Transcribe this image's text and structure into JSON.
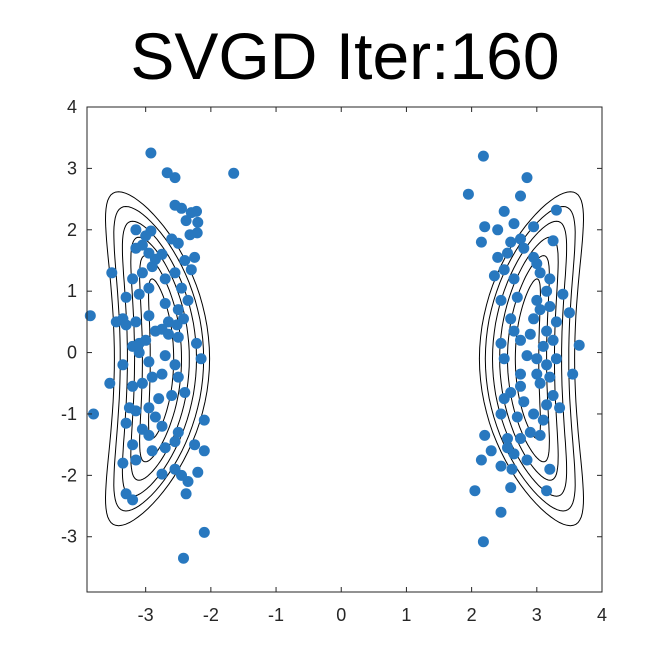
{
  "chart_data": {
    "type": "scatter",
    "title": "SVGD Iter:160",
    "xlabel": "",
    "ylabel": "",
    "xlim": [
      -3.9,
      4.0
    ],
    "ylim": [
      -3.9,
      4.0
    ],
    "x_ticks": [
      -3,
      -2,
      -1,
      0,
      1,
      2,
      3,
      4
    ],
    "y_ticks": [
      -3,
      -2,
      -1,
      0,
      1,
      2,
      3,
      4
    ],
    "grid": false,
    "marker_color": "#2878bf",
    "contour_color": "#000000",
    "contours": {
      "modes": [
        {
          "center_x": -2.75,
          "center_y": -0.1,
          "bend": -0.09
        },
        {
          "center_x": 2.85,
          "center_y": -0.1,
          "bend": 0.09
        }
      ],
      "levels": [
        {
          "half_width": 0.18,
          "half_height": 1.3
        },
        {
          "half_width": 0.3,
          "half_height": 1.68
        },
        {
          "half_width": 0.42,
          "half_height": 1.98
        },
        {
          "half_width": 0.53,
          "half_height": 2.24
        },
        {
          "half_width": 0.64,
          "half_height": 2.48
        },
        {
          "half_width": 0.73,
          "half_height": 2.72
        }
      ]
    },
    "series": [
      {
        "points": [
          [
            -2.92,
            3.25
          ],
          [
            -2.67,
            2.93
          ],
          [
            -2.55,
            2.85
          ],
          [
            -1.65,
            2.92
          ],
          [
            -2.55,
            2.4
          ],
          [
            -2.45,
            2.35
          ],
          [
            -2.3,
            2.28
          ],
          [
            -2.22,
            2.3
          ],
          [
            -2.2,
            2.12
          ],
          [
            -2.21,
            1.95
          ],
          [
            -3.15,
            2.0
          ],
          [
            -3.0,
            1.9
          ],
          [
            -2.92,
            1.98
          ],
          [
            -2.38,
            2.15
          ],
          [
            -2.32,
            1.92
          ],
          [
            -3.52,
            1.3
          ],
          [
            -3.15,
            1.7
          ],
          [
            -3.05,
            1.75
          ],
          [
            -2.95,
            1.62
          ],
          [
            -2.85,
            1.52
          ],
          [
            -2.75,
            1.6
          ],
          [
            -2.6,
            1.85
          ],
          [
            -2.5,
            1.78
          ],
          [
            -2.4,
            1.5
          ],
          [
            -2.3,
            1.35
          ],
          [
            -2.25,
            1.55
          ],
          [
            -3.2,
            1.2
          ],
          [
            -3.05,
            1.3
          ],
          [
            -2.9,
            1.4
          ],
          [
            -2.7,
            1.2
          ],
          [
            -2.55,
            1.3
          ],
          [
            -2.45,
            1.05
          ],
          [
            -3.3,
            0.9
          ],
          [
            -3.1,
            0.95
          ],
          [
            -2.95,
            1.05
          ],
          [
            -2.7,
            0.8
          ],
          [
            -2.5,
            0.7
          ],
          [
            -2.35,
            0.85
          ],
          [
            -3.85,
            0.6
          ],
          [
            -3.45,
            0.5
          ],
          [
            -3.35,
            0.55
          ],
          [
            -3.3,
            0.45
          ],
          [
            -3.15,
            0.5
          ],
          [
            -2.95,
            0.6
          ],
          [
            -2.65,
            0.5
          ],
          [
            -2.52,
            0.45
          ],
          [
            -2.42,
            0.55
          ],
          [
            -3.2,
            0.1
          ],
          [
            -3.1,
            0.15
          ],
          [
            -3.0,
            0.2
          ],
          [
            -2.85,
            0.35
          ],
          [
            -2.75,
            0.38
          ],
          [
            -2.65,
            0.3
          ],
          [
            -2.5,
            0.25
          ],
          [
            -2.22,
            0.15
          ],
          [
            -3.35,
            -0.2
          ],
          [
            -3.1,
            0.0
          ],
          [
            -2.95,
            -0.15
          ],
          [
            -2.7,
            -0.05
          ],
          [
            -2.55,
            -0.2
          ],
          [
            -2.15,
            -0.1
          ],
          [
            -3.55,
            -0.5
          ],
          [
            -3.2,
            -0.55
          ],
          [
            -3.05,
            -0.5
          ],
          [
            -2.9,
            -0.4
          ],
          [
            -2.75,
            -0.35
          ],
          [
            -2.5,
            -0.4
          ],
          [
            -3.8,
            -1.0
          ],
          [
            -3.25,
            -0.9
          ],
          [
            -3.15,
            -0.95
          ],
          [
            -2.95,
            -0.9
          ],
          [
            -2.8,
            -0.75
          ],
          [
            -2.6,
            -0.7
          ],
          [
            -2.4,
            -0.65
          ],
          [
            -2.1,
            -1.1
          ],
          [
            -3.3,
            -1.15
          ],
          [
            -3.05,
            -1.25
          ],
          [
            -2.85,
            -1.05
          ],
          [
            -2.75,
            -1.2
          ],
          [
            -2.5,
            -1.3
          ],
          [
            -2.25,
            -1.5
          ],
          [
            -3.2,
            -1.5
          ],
          [
            -3.15,
            -1.75
          ],
          [
            -2.95,
            -1.35
          ],
          [
            -2.7,
            -1.55
          ],
          [
            -2.55,
            -1.45
          ],
          [
            -2.1,
            -1.6
          ],
          [
            -3.35,
            -1.8
          ],
          [
            -2.9,
            -1.6
          ],
          [
            -2.55,
            -1.9
          ],
          [
            -2.35,
            -2.1
          ],
          [
            -2.2,
            -1.95
          ],
          [
            -2.75,
            -1.98
          ],
          [
            -2.45,
            -2.0
          ],
          [
            -3.3,
            -2.3
          ],
          [
            -3.2,
            -2.4
          ],
          [
            -2.38,
            -2.3
          ],
          [
            -2.1,
            -2.93
          ],
          [
            -2.42,
            -3.35
          ]
        ]
      },
      {
        "points": [
          [
            2.18,
            3.2
          ],
          [
            2.85,
            2.85
          ],
          [
            1.95,
            2.58
          ],
          [
            2.75,
            2.55
          ],
          [
            3.3,
            2.32
          ],
          [
            2.5,
            2.3
          ],
          [
            2.2,
            2.05
          ],
          [
            2.4,
            2.0
          ],
          [
            2.65,
            2.1
          ],
          [
            2.95,
            2.05
          ],
          [
            2.15,
            1.8
          ],
          [
            2.6,
            1.8
          ],
          [
            2.75,
            1.85
          ],
          [
            3.25,
            1.82
          ],
          [
            2.4,
            1.55
          ],
          [
            2.55,
            1.62
          ],
          [
            2.8,
            1.7
          ],
          [
            2.95,
            1.55
          ],
          [
            3.0,
            1.45
          ],
          [
            2.35,
            1.25
          ],
          [
            2.5,
            1.35
          ],
          [
            2.65,
            1.2
          ],
          [
            3.05,
            1.3
          ],
          [
            3.2,
            1.2
          ],
          [
            2.45,
            0.85
          ],
          [
            2.7,
            0.9
          ],
          [
            3.0,
            0.85
          ],
          [
            3.15,
            1.0
          ],
          [
            3.4,
            0.95
          ],
          [
            3.05,
            0.7
          ],
          [
            3.2,
            0.75
          ],
          [
            2.6,
            0.55
          ],
          [
            2.95,
            0.55
          ],
          [
            3.3,
            0.5
          ],
          [
            2.65,
            0.35
          ],
          [
            2.9,
            0.3
          ],
          [
            3.15,
            0.35
          ],
          [
            3.5,
            0.65
          ],
          [
            2.45,
            0.15
          ],
          [
            2.75,
            0.2
          ],
          [
            3.1,
            0.1
          ],
          [
            3.25,
            0.2
          ],
          [
            3.65,
            0.12
          ],
          [
            2.5,
            -0.1
          ],
          [
            2.85,
            -0.05
          ],
          [
            3.0,
            -0.1
          ],
          [
            3.15,
            -0.2
          ],
          [
            3.3,
            -0.1
          ],
          [
            2.75,
            -0.35
          ],
          [
            3.0,
            -0.35
          ],
          [
            3.2,
            -0.4
          ],
          [
            3.55,
            -0.35
          ],
          [
            2.6,
            -0.65
          ],
          [
            2.75,
            -0.55
          ],
          [
            3.05,
            -0.5
          ],
          [
            3.25,
            -0.7
          ],
          [
            2.5,
            -0.75
          ],
          [
            2.8,
            -0.8
          ],
          [
            3.15,
            -0.85
          ],
          [
            3.35,
            -0.9
          ],
          [
            2.45,
            -1.0
          ],
          [
            2.7,
            -1.05
          ],
          [
            2.95,
            -1.0
          ],
          [
            3.1,
            -1.1
          ],
          [
            2.2,
            -1.35
          ],
          [
            2.55,
            -1.4
          ],
          [
            2.75,
            -1.4
          ],
          [
            2.9,
            -1.3
          ],
          [
            3.05,
            -1.35
          ],
          [
            2.3,
            -1.6
          ],
          [
            2.55,
            -1.55
          ],
          [
            2.65,
            -1.65
          ],
          [
            2.15,
            -1.75
          ],
          [
            2.45,
            -1.85
          ],
          [
            2.62,
            -1.9
          ],
          [
            2.85,
            -1.75
          ],
          [
            3.2,
            -1.9
          ],
          [
            2.05,
            -2.25
          ],
          [
            2.6,
            -2.2
          ],
          [
            3.15,
            -2.25
          ],
          [
            2.45,
            -2.6
          ],
          [
            2.18,
            -3.08
          ]
        ]
      }
    ]
  }
}
